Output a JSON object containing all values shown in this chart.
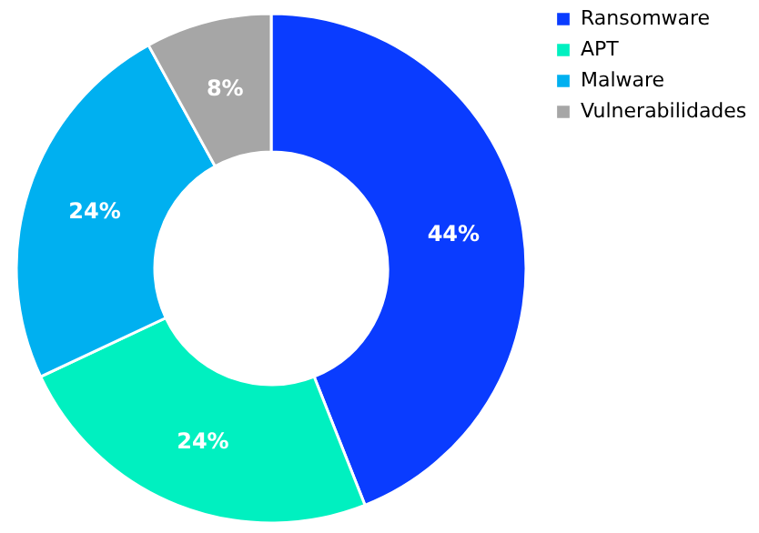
{
  "chart_data": {
    "type": "donut",
    "categories": [
      "Ransomware",
      "APT",
      "Malware",
      "Vulnerabilidades"
    ],
    "values": [
      44,
      24,
      24,
      8
    ],
    "colors": [
      "#0a3cff",
      "#00f0c0",
      "#00b0f0",
      "#a6a6a6"
    ],
    "value_labels": [
      "44%",
      "24%",
      "24%",
      "8%"
    ],
    "legend": "right"
  }
}
